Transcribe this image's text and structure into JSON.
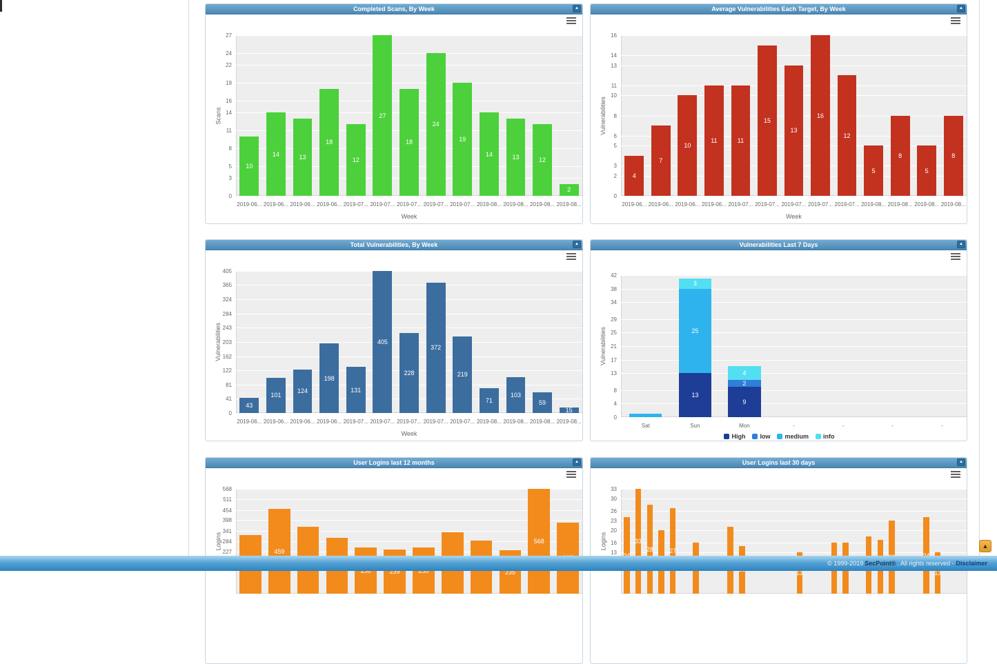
{
  "icons": {
    "collapse": "▲",
    "scroll_top": "▲"
  },
  "footer": {
    "copyright": "© 1999-2019",
    "brand": "SecPoint®",
    "rights": ". All rights reserved -",
    "disclaimer": "Disclaimer"
  },
  "chart_data": [
    {
      "id": "completed-scans-by-week",
      "type": "bar",
      "title": "Completed Scans, By Week",
      "xlabel": "Week",
      "ylabel": "Scans",
      "categories": [
        "2019-06...",
        "2019-06...",
        "2019-06...",
        "2019-06...",
        "2019-07...",
        "2019-07...",
        "2019-07...",
        "2019-07...",
        "2019-07...",
        "2019-08...",
        "2019-08...",
        "2019-08...",
        "2019-08..."
      ],
      "values": [
        10,
        14,
        13,
        18,
        12,
        27,
        18,
        24,
        19,
        14,
        13,
        12,
        2
      ],
      "yticks": [
        0,
        3,
        5,
        8,
        11,
        14,
        16,
        19,
        22,
        24,
        27
      ],
      "ylim": [
        0,
        27
      ],
      "color": "#4cd13c",
      "grid": true,
      "legend_position": "none"
    },
    {
      "id": "avg-vulnerabilities-each-target-by-week",
      "type": "bar",
      "title": "Average Vulnerabilities Each Target, By Week",
      "xlabel": "Week",
      "ylabel": "Vulnerabilities",
      "categories": [
        "2019-06...",
        "2019-06...",
        "2019-06...",
        "2019-06...",
        "2019-07...",
        "2019-07...",
        "2019-07...",
        "2019-07...",
        "2019-07...",
        "2019-08...",
        "2019-08...",
        "2019-08...",
        "2019-08..."
      ],
      "values": [
        4,
        7,
        10,
        11,
        11,
        15,
        13,
        16,
        12,
        5,
        8,
        5,
        8
      ],
      "yticks": [
        0,
        2,
        3,
        5,
        6,
        8,
        10,
        11,
        13,
        14,
        16
      ],
      "ylim": [
        0,
        16
      ],
      "color": "#c2321f",
      "grid": true,
      "legend_position": "none"
    },
    {
      "id": "total-vulnerabilities-by-week",
      "type": "bar",
      "title": "Total Vulnerabilities, By Week",
      "xlabel": "Week",
      "ylabel": "Vulnerabilities",
      "categories": [
        "2019-06...",
        "2019-06...",
        "2019-06...",
        "2019-06...",
        "2019-07...",
        "2019-07...",
        "2019-07...",
        "2019-07...",
        "2019-07...",
        "2019-08...",
        "2019-08...",
        "2019-08...",
        "2019-08..."
      ],
      "values": [
        43,
        101,
        124,
        198,
        131,
        405,
        228,
        372,
        219,
        71,
        103,
        59,
        15
      ],
      "yticks": [
        0,
        41,
        81,
        122,
        162,
        203,
        243,
        284,
        324,
        365,
        405
      ],
      "ylim": [
        0,
        405
      ],
      "color": "#3c6d9f",
      "grid": true,
      "legend_position": "none"
    },
    {
      "id": "vulnerabilities-last-7-days",
      "type": "stacked-bar",
      "title": "Vulnerabilities Last 7 Days",
      "xlabel": "",
      "ylabel": "Vulnerabilities",
      "categories": [
        "Sat",
        "Sun",
        "Mon",
        "-",
        "-",
        "-",
        "-"
      ],
      "series": [
        {
          "name": "High",
          "color": "#1e3d96",
          "values": [
            0,
            13,
            9,
            0,
            0,
            0,
            0
          ]
        },
        {
          "name": "low",
          "color": "#2f7ed8",
          "values": [
            0,
            0,
            2,
            0,
            0,
            0,
            0
          ]
        },
        {
          "name": "medium",
          "color": "#2eb3ef",
          "values": [
            1,
            25,
            0,
            0,
            0,
            0,
            0
          ]
        },
        {
          "name": "info",
          "color": "#53dff2",
          "values": [
            0,
            3,
            4,
            0,
            0,
            0,
            0
          ]
        }
      ],
      "yticks": [
        0,
        4,
        8,
        13,
        17,
        21,
        25,
        29,
        34,
        38,
        42
      ],
      "ylim": [
        0,
        42
      ],
      "grid": true,
      "legend_position": "bottom"
    },
    {
      "id": "user-logins-last-12-months",
      "type": "bar",
      "title": "User Logins last 12 months",
      "xlabel": "",
      "ylabel": "Logins",
      "categories": [],
      "values": [
        318,
        459,
        363,
        303,
        250,
        239,
        250,
        333,
        288,
        235,
        568,
        385
      ],
      "yticks": [
        227,
        284,
        341,
        398,
        454,
        511,
        568
      ],
      "ylim": [
        0,
        568
      ],
      "color": "#f28b1c",
      "grid": true,
      "legend_position": "none"
    },
    {
      "id": "user-logins-last-30-days",
      "type": "bar",
      "title": "User Logins last 30 days",
      "xlabel": "",
      "ylabel": "Logins",
      "categories": [],
      "values": [
        24,
        33,
        28,
        20,
        27,
        0,
        16,
        0,
        0,
        21,
        15,
        0,
        0,
        0,
        0,
        13,
        0,
        0,
        16,
        16,
        0,
        18,
        17,
        23,
        0,
        0,
        24,
        13,
        0,
        0
      ],
      "yticks": [
        13,
        16,
        20,
        23,
        26,
        30,
        33
      ],
      "ylim": [
        0,
        33
      ],
      "color": "#f28b1c",
      "grid": true,
      "legend_position": "none"
    }
  ]
}
